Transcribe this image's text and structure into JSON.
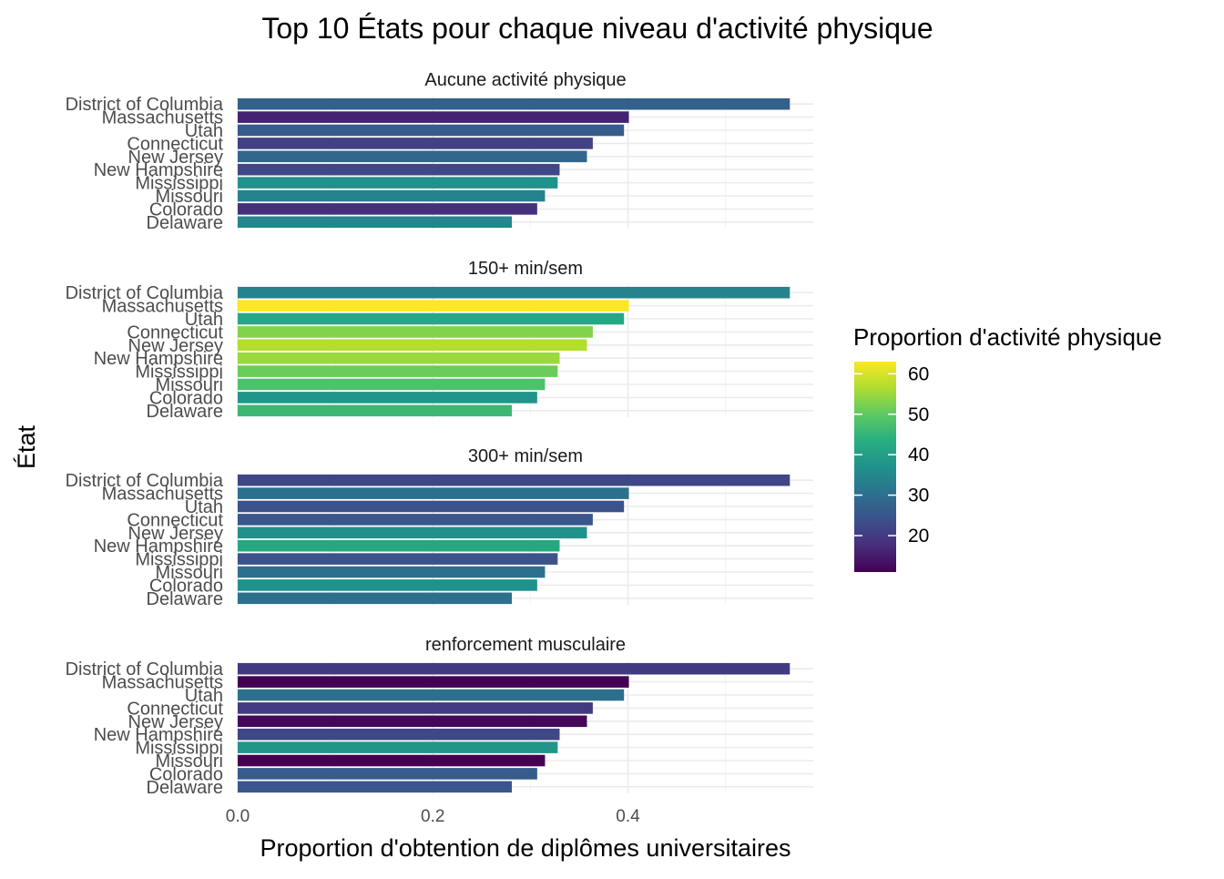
{
  "chart_data": {
    "type": "bar",
    "orientation": "horizontal",
    "title": "Top 10 États pour chaque niveau d'activité physique",
    "xlabel": "Proportion d'obtention de diplômes universitaires",
    "ylabel": "État",
    "xlim": [
      0,
      0.59
    ],
    "x_ticks": [
      "0.0",
      "0.2",
      "0.4"
    ],
    "x_tick_values": [
      0,
      0.2,
      0.4
    ],
    "grid": true,
    "states": [
      "District of Columbia",
      "Massachusetts",
      "Utah",
      "Connecticut",
      "New Jersey",
      "New Hampshire",
      "Mississippi",
      "Missouri",
      "Colorado",
      "Delaware"
    ],
    "values": [
      0.566,
      0.401,
      0.396,
      0.364,
      0.358,
      0.33,
      0.328,
      0.315,
      0.307,
      0.281
    ],
    "facets": [
      {
        "name": "Aucune activité physique",
        "fill_values": [
          27,
          16,
          26,
          21,
          28,
          22,
          37,
          34,
          18,
          35
        ]
      },
      {
        "name": "150+ min/sem",
        "fill_values": [
          34,
          63,
          42,
          53,
          57,
          55,
          51,
          48,
          38,
          46
        ]
      },
      {
        "name": "300+ min/sem",
        "fill_values": [
          22,
          30,
          24,
          25,
          37,
          42,
          24,
          30,
          37,
          30
        ]
      },
      {
        "name": "renforcement musculaire",
        "fill_values": [
          20,
          11,
          30,
          20,
          12,
          22,
          38,
          11,
          26,
          25
        ]
      }
    ],
    "legend": {
      "title": "Proportion d'activité physique",
      "placement": "right",
      "min": 11,
      "max": 63,
      "ticks": [
        "20",
        "30",
        "40",
        "50",
        "60"
      ],
      "tick_values": [
        20,
        30,
        40,
        50,
        60
      ],
      "palette": "viridis"
    }
  }
}
